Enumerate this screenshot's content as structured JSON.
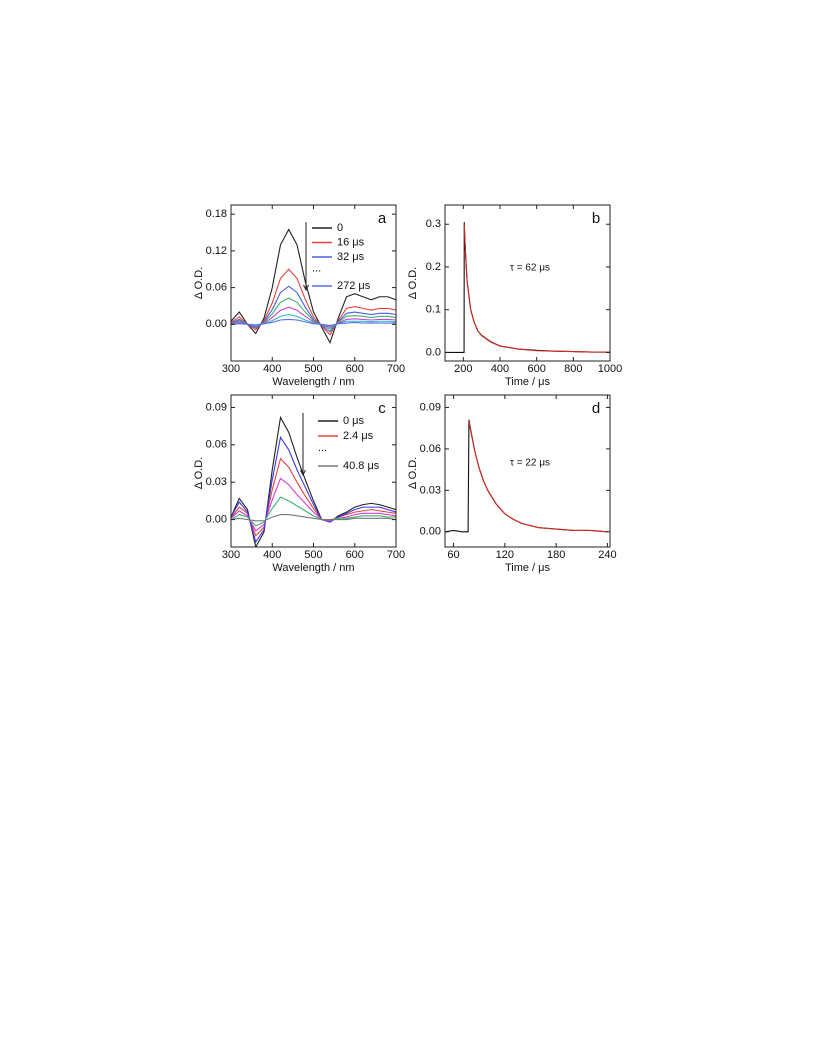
{
  "chart_data": [
    {
      "type": "line",
      "panel_label": "a",
      "xlabel": "Wavelength / nm",
      "ylabel": "Δ O.D.",
      "xlim": [
        300,
        700
      ],
      "ylim": [
        -0.06,
        0.195
      ],
      "xticks": [
        300,
        400,
        500,
        600,
        700
      ],
      "yticks": [
        {
          "value": 0,
          "label": "0.00"
        },
        {
          "value": 0.06,
          "label": "0.06"
        },
        {
          "value": 0.12,
          "label": "0.12"
        },
        {
          "value": 0.18,
          "label": "0.18"
        }
      ],
      "x": [
        300,
        320,
        340,
        360,
        380,
        400,
        420,
        440,
        460,
        480,
        500,
        520,
        540,
        560,
        580,
        600,
        620,
        640,
        660,
        680,
        700
      ],
      "series": [
        {
          "name": "0",
          "color": "#222222",
          "values": [
            0.005,
            0.02,
            0.0,
            -0.015,
            0.01,
            0.06,
            0.13,
            0.155,
            0.13,
            0.07,
            0.02,
            -0.005,
            -0.03,
            0.01,
            0.045,
            0.05,
            0.045,
            0.04,
            0.045,
            0.045,
            0.04
          ]
        },
        {
          "name": "16 μs",
          "color": "#e8413c",
          "values": [
            0.003,
            0.012,
            0.0,
            -0.009,
            0.006,
            0.035,
            0.075,
            0.09,
            0.075,
            0.041,
            0.012,
            -0.003,
            -0.017,
            0.006,
            0.026,
            0.029,
            0.026,
            0.023,
            0.026,
            0.026,
            0.023
          ]
        },
        {
          "name": "32 μs",
          "color": "#4a5ee8",
          "values": [
            0.002,
            0.008,
            0.0,
            -0.006,
            0.004,
            0.024,
            0.052,
            0.062,
            0.052,
            0.028,
            0.008,
            -0.002,
            -0.012,
            0.004,
            0.018,
            0.02,
            0.018,
            0.016,
            0.018,
            0.018,
            0.016
          ]
        },
        {
          "color": "#3cb371",
          "values": [
            0.001,
            0.006,
            0.0,
            -0.004,
            0.003,
            0.017,
            0.036,
            0.043,
            0.036,
            0.02,
            0.006,
            -0.001,
            -0.008,
            0.003,
            0.013,
            0.014,
            0.013,
            0.011,
            0.013,
            0.013,
            0.011
          ]
        },
        {
          "color": "#d23cd2",
          "values": [
            0.001,
            0.004,
            0.0,
            -0.003,
            0.002,
            0.011,
            0.023,
            0.028,
            0.023,
            0.013,
            0.004,
            -0.001,
            -0.005,
            0.002,
            0.008,
            0.009,
            0.008,
            0.007,
            0.008,
            0.008,
            0.007
          ]
        },
        {
          "color": "#2ab5c8",
          "values": [
            0.0,
            0.002,
            0.0,
            -0.002,
            0.001,
            0.006,
            0.013,
            0.016,
            0.013,
            0.007,
            0.002,
            0.0,
            -0.003,
            0.001,
            0.005,
            0.005,
            0.005,
            0.004,
            0.005,
            0.005,
            0.004
          ]
        },
        {
          "name": "272 μs",
          "color": "#5570e0",
          "values": [
            0.0,
            0.001,
            0.0,
            -0.001,
            0.001,
            0.003,
            0.007,
            0.008,
            0.007,
            0.004,
            0.001,
            0.0,
            -0.002,
            0.001,
            0.002,
            0.003,
            0.002,
            0.002,
            0.002,
            0.002,
            0.002
          ]
        }
      ],
      "legend_note": "..."
    },
    {
      "type": "line",
      "panel_label": "b",
      "xlabel": "Time / μs",
      "ylabel": "Δ O.D.",
      "xlim": [
        100,
        1000
      ],
      "ylim": [
        -0.02,
        0.345
      ],
      "xticks": [
        200,
        400,
        600,
        800,
        1000
      ],
      "yticks": [
        {
          "value": 0,
          "label": "0.0"
        },
        0.1,
        0.2,
        0.3
      ],
      "x": [
        100,
        150,
        200,
        204,
        205,
        210,
        220,
        240,
        260,
        280,
        300,
        350,
        400,
        500,
        600,
        700,
        800,
        900,
        1000
      ],
      "series": [
        {
          "color": "#111111",
          "values": [
            0.0,
            0.0,
            0.0,
            0.0,
            0.305,
            0.25,
            0.17,
            0.1,
            0.07,
            0.05,
            0.04,
            0.025,
            0.015,
            0.008,
            0.005,
            0.003,
            0.002,
            0.001,
            0.001
          ]
        },
        {
          "color": "#d42a1e",
          "values": [
            null,
            null,
            null,
            null,
            0.3,
            0.248,
            0.168,
            0.1,
            0.069,
            0.05,
            0.039,
            0.024,
            0.015,
            0.008,
            0.004,
            0.003,
            0.002,
            0.001,
            0.001
          ]
        }
      ],
      "annotation": "τ = 62 μs"
    },
    {
      "type": "line",
      "panel_label": "c",
      "xlabel": "Wavelength / nm",
      "ylabel": "Δ O.D.",
      "xlim": [
        300,
        700
      ],
      "ylim": [
        -0.022,
        0.1
      ],
      "xticks": [
        300,
        400,
        500,
        600,
        700
      ],
      "yticks": [
        {
          "value": 0,
          "label": "0.00"
        },
        {
          "value": 0.03,
          "label": "0.03"
        },
        {
          "value": 0.06,
          "label": "0.06"
        },
        {
          "value": 0.09,
          "label": "0.09"
        }
      ],
      "x": [
        300,
        320,
        340,
        360,
        380,
        400,
        420,
        440,
        460,
        480,
        500,
        520,
        540,
        560,
        580,
        600,
        620,
        640,
        660,
        680,
        700
      ],
      "series": [
        {
          "name": "0 μs",
          "color": "#222222",
          "values": [
            0.002,
            0.017,
            0.008,
            -0.022,
            -0.01,
            0.04,
            0.082,
            0.07,
            0.05,
            0.032,
            0.015,
            0.0,
            -0.002,
            0.003,
            0.006,
            0.01,
            0.012,
            0.013,
            0.012,
            0.01,
            0.008
          ]
        },
        {
          "name": "2.4 μs",
          "color": "#e8413c",
          "values": [
            0.001,
            0.01,
            0.005,
            -0.013,
            -0.006,
            0.024,
            0.049,
            0.042,
            0.03,
            0.019,
            0.009,
            0.0,
            -0.001,
            0.002,
            0.004,
            0.006,
            0.007,
            0.008,
            0.007,
            0.006,
            0.005
          ]
        },
        {
          "color": "#3a3ae0",
          "values": [
            0.002,
            0.014,
            0.006,
            -0.018,
            -0.008,
            0.032,
            0.066,
            0.056,
            0.04,
            0.026,
            0.012,
            0.0,
            -0.002,
            0.002,
            0.005,
            0.008,
            0.01,
            0.01,
            0.01,
            0.008,
            0.006
          ]
        },
        {
          "color": "#d23cd2",
          "values": [
            0.001,
            0.007,
            0.003,
            -0.009,
            -0.004,
            0.016,
            0.033,
            0.028,
            0.02,
            0.013,
            0.006,
            0.0,
            -0.001,
            0.001,
            0.002,
            0.004,
            0.005,
            0.005,
            0.005,
            0.004,
            0.003
          ]
        },
        {
          "color": "#3cb371",
          "values": [
            0.0,
            0.004,
            0.002,
            -0.005,
            -0.002,
            0.009,
            0.018,
            0.015,
            0.011,
            0.007,
            0.003,
            0.0,
            0.0,
            0.001,
            0.001,
            0.002,
            0.003,
            0.003,
            0.003,
            0.002,
            0.002
          ]
        },
        {
          "name": "40.8 μs",
          "color": "#777777",
          "values": [
            0.0,
            0.001,
            0.0,
            -0.001,
            -0.001,
            0.002,
            0.004,
            0.004,
            0.003,
            0.002,
            0.001,
            0.0,
            0.0,
            0.0,
            0.0,
            0.001,
            0.001,
            0.001,
            0.001,
            0.001,
            0.0
          ]
        }
      ],
      "legend_note": "..."
    },
    {
      "type": "line",
      "panel_label": "d",
      "xlabel": "Time / μs",
      "ylabel": "Δ O.D.",
      "xlim": [
        50,
        243
      ],
      "ylim": [
        -0.011,
        0.099
      ],
      "xticks": [
        60,
        120,
        180,
        240
      ],
      "yticks": [
        {
          "value": 0,
          "label": "0.00"
        },
        {
          "value": 0.03,
          "label": "0.03"
        },
        {
          "value": 0.06,
          "label": "0.06"
        },
        {
          "value": 0.09,
          "label": "0.09"
        }
      ],
      "x": [
        50,
        60,
        70,
        77,
        78,
        80,
        85,
        90,
        95,
        100,
        110,
        120,
        130,
        140,
        160,
        180,
        200,
        220,
        240
      ],
      "series": [
        {
          "color": "#111111",
          "values": [
            0.0,
            0.001,
            0.0,
            0.0,
            0.081,
            0.074,
            0.058,
            0.046,
            0.037,
            0.03,
            0.02,
            0.013,
            0.009,
            0.006,
            0.003,
            0.002,
            0.001,
            0.001,
            0.0
          ]
        },
        {
          "color": "#d42a1e",
          "values": [
            null,
            null,
            null,
            null,
            0.08,
            0.073,
            0.058,
            0.046,
            0.037,
            0.03,
            0.02,
            0.013,
            0.009,
            0.006,
            0.003,
            0.002,
            0.001,
            0.001,
            0.0
          ]
        }
      ],
      "annotation": "τ = 22 μs"
    }
  ]
}
